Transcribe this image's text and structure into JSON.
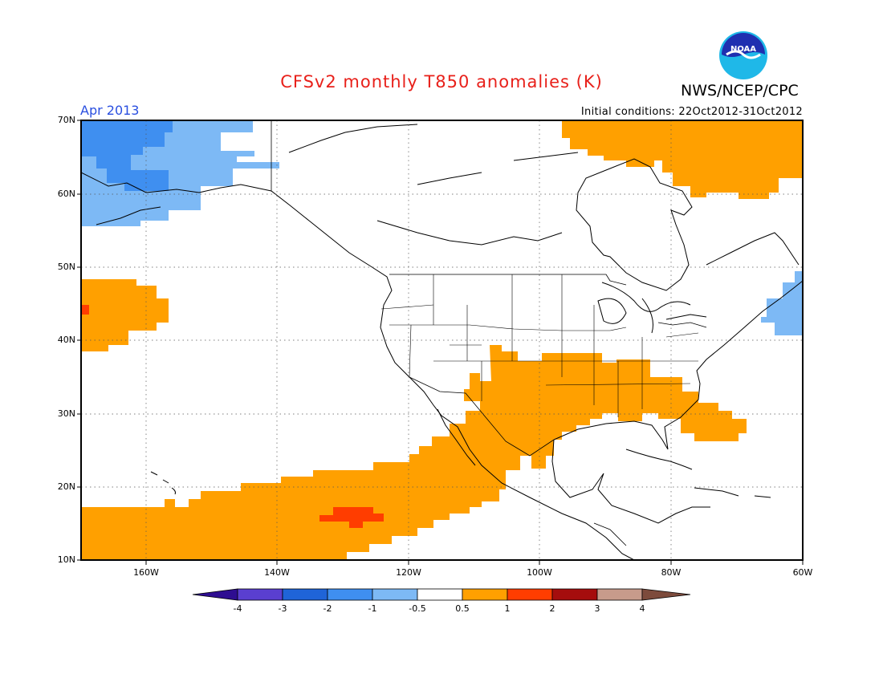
{
  "header": {
    "title": "CFSv2 monthly T850 anomalies (K)",
    "agency": "NWS/NCEP/CPC",
    "logo_text": "NOAA",
    "month": "Apr 2013",
    "initial_conditions": "Initial conditions: 22Oct2012-31Oct2012"
  },
  "map": {
    "lat_labels": [
      "70N",
      "60N",
      "50N",
      "40N",
      "30N",
      "20N",
      "10N"
    ],
    "lon_labels": [
      "160W",
      "140W",
      "120W",
      "100W",
      "80W",
      "60W"
    ],
    "extent": {
      "lon_min": -170,
      "lon_max": -60,
      "lat_min": 10,
      "lat_max": 70
    }
  },
  "colorbar": {
    "labels": [
      "-4",
      "-3",
      "-2",
      "-1",
      "-0.5",
      "0.5",
      "1",
      "2",
      "3",
      "4"
    ],
    "colors": {
      "lt_minus4": "#2e0d91",
      "minus4_minus3": "#5a3fd0",
      "minus3_minus2": "#1f64d8",
      "minus2_minus1": "#3f8ff0",
      "minus1_minus05": "#7db9f5",
      "neutral": "#ffffff",
      "p05_1": "#ffa000",
      "p1_2": "#ff3d00",
      "p2_3": "#a50d0d",
      "p3_4": "#c79b8b",
      "gt4": "#7d4b3c"
    }
  }
}
